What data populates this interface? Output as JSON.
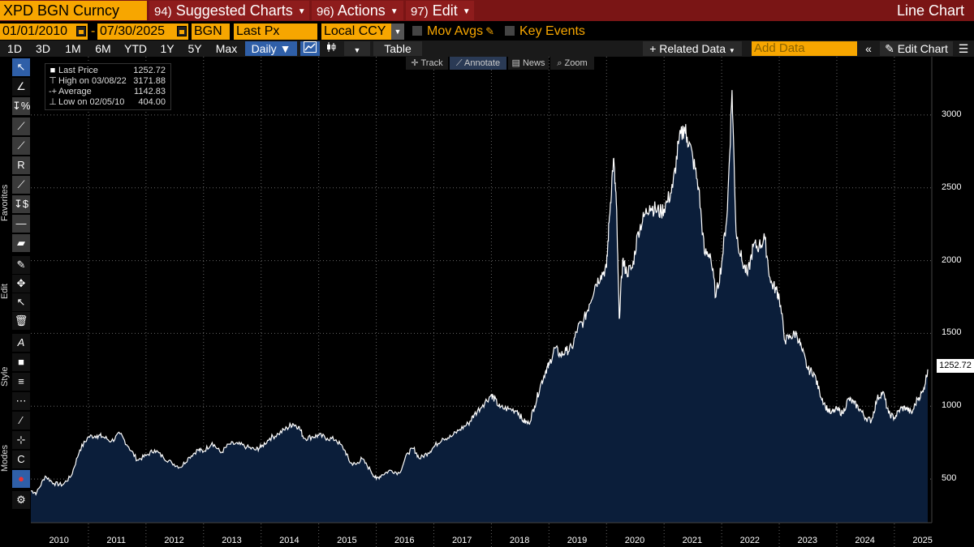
{
  "header": {
    "ticker": "XPD BGN Curncy",
    "menus": [
      {
        "num": "94)",
        "label": "Suggested Charts"
      },
      {
        "num": "96)",
        "label": "Actions"
      },
      {
        "num": "97)",
        "label": "Edit"
      }
    ],
    "chart_type": "Line Chart"
  },
  "params": {
    "start_date": "01/01/2010",
    "end_date": "07/30/2025",
    "source": "BGN",
    "field": "Last Px",
    "currency": "Local CCY",
    "mov_avgs": "Mov Avgs",
    "key_events": "Key Events"
  },
  "toolbar": {
    "ranges": [
      "1D",
      "3D",
      "1M",
      "6M",
      "YTD",
      "1Y",
      "5Y",
      "Max"
    ],
    "frequency": "Daily",
    "table": "Table",
    "related_data": "Related Data",
    "add_data_placeholder": "Add Data",
    "edit_chart": "Edit Chart"
  },
  "chart_tabs": [
    "Track",
    "Annotate",
    "News",
    "Zoom"
  ],
  "sidebar_labels": {
    "favorites": "Favorites",
    "edit": "Edit",
    "style": "Style",
    "modes": "Modes"
  },
  "legend": {
    "last_price_label": "Last Price",
    "last_price": "1252.72",
    "high_label": "High on 03/08/22",
    "high": "3171.88",
    "avg_label": "Average",
    "avg": "1142.83",
    "low_label": "Low on 02/05/10",
    "low": "404.00"
  },
  "last_value_box": "1252.72",
  "colors": {
    "orange": "#f7a600",
    "maroon": "#7a1515",
    "fill": "#0b1e3a",
    "line": "#ffffff",
    "select": "#2f5fa8"
  },
  "chart_data": {
    "type": "area",
    "title": "XPD BGN Curncy",
    "series_name": "Last Price",
    "x_ticks": [
      "2010",
      "2011",
      "2012",
      "2013",
      "2014",
      "2015",
      "2016",
      "2017",
      "2018",
      "2019",
      "2020",
      "2021",
      "2022",
      "2023",
      "2024",
      "2025"
    ],
    "y_ticks": [
      500,
      1000,
      1500,
      2000,
      2500,
      3000
    ],
    "ylim": [
      200,
      3400
    ],
    "xlim": [
      2010.0,
      2025.65
    ],
    "points": [
      [
        2010.0,
        420
      ],
      [
        2010.1,
        404
      ],
      [
        2010.25,
        520
      ],
      [
        2010.4,
        470
      ],
      [
        2010.55,
        460
      ],
      [
        2010.7,
        520
      ],
      [
        2010.85,
        700
      ],
      [
        2011.0,
        790
      ],
      [
        2011.15,
        800
      ],
      [
        2011.25,
        790
      ],
      [
        2011.4,
        760
      ],
      [
        2011.55,
        810
      ],
      [
        2011.7,
        720
      ],
      [
        2011.85,
        630
      ],
      [
        2012.0,
        660
      ],
      [
        2012.15,
        700
      ],
      [
        2012.3,
        650
      ],
      [
        2012.45,
        610
      ],
      [
        2012.6,
        580
      ],
      [
        2012.75,
        650
      ],
      [
        2012.9,
        700
      ],
      [
        2013.0,
        690
      ],
      [
        2013.15,
        750
      ],
      [
        2013.3,
        680
      ],
      [
        2013.45,
        740
      ],
      [
        2013.6,
        740
      ],
      [
        2013.75,
        720
      ],
      [
        2013.9,
        700
      ],
      [
        2014.0,
        720
      ],
      [
        2014.15,
        780
      ],
      [
        2014.3,
        810
      ],
      [
        2014.45,
        850
      ],
      [
        2014.55,
        880
      ],
      [
        2014.65,
        860
      ],
      [
        2014.75,
        780
      ],
      [
        2014.9,
        790
      ],
      [
        2015.0,
        800
      ],
      [
        2015.15,
        780
      ],
      [
        2015.3,
        770
      ],
      [
        2015.45,
        700
      ],
      [
        2015.55,
        610
      ],
      [
        2015.65,
        600
      ],
      [
        2015.75,
        640
      ],
      [
        2015.9,
        560
      ],
      [
        2016.0,
        500
      ],
      [
        2016.1,
        530
      ],
      [
        2016.25,
        560
      ],
      [
        2016.4,
        540
      ],
      [
        2016.55,
        680
      ],
      [
        2016.65,
        710
      ],
      [
        2016.75,
        640
      ],
      [
        2016.9,
        680
      ],
      [
        2017.0,
        720
      ],
      [
        2017.15,
        780
      ],
      [
        2017.3,
        790
      ],
      [
        2017.45,
        840
      ],
      [
        2017.6,
        880
      ],
      [
        2017.7,
        940
      ],
      [
        2017.85,
        1010
      ],
      [
        2018.0,
        1080
      ],
      [
        2018.05,
        1050
      ],
      [
        2018.15,
        990
      ],
      [
        2018.3,
        980
      ],
      [
        2018.45,
        970
      ],
      [
        2018.55,
        900
      ],
      [
        2018.65,
        880
      ],
      [
        2018.75,
        1000
      ],
      [
        2018.85,
        1140
      ],
      [
        2018.95,
        1250
      ],
      [
        2019.0,
        1280
      ],
      [
        2019.1,
        1400
      ],
      [
        2019.2,
        1350
      ],
      [
        2019.3,
        1380
      ],
      [
        2019.4,
        1400
      ],
      [
        2019.5,
        1540
      ],
      [
        2019.6,
        1580
      ],
      [
        2019.7,
        1700
      ],
      [
        2019.8,
        1830
      ],
      [
        2019.9,
        1900
      ],
      [
        2020.0,
        1950
      ],
      [
        2020.05,
        2300
      ],
      [
        2020.12,
        2700
      ],
      [
        2020.17,
        2400
      ],
      [
        2020.22,
        1600
      ],
      [
        2020.28,
        2000
      ],
      [
        2020.35,
        1920
      ],
      [
        2020.45,
        1950
      ],
      [
        2020.55,
        2200
      ],
      [
        2020.65,
        2300
      ],
      [
        2020.75,
        2380
      ],
      [
        2020.85,
        2350
      ],
      [
        2020.95,
        2330
      ],
      [
        2021.05,
        2400
      ],
      [
        2021.15,
        2500
      ],
      [
        2021.25,
        2800
      ],
      [
        2021.35,
        2920
      ],
      [
        2021.4,
        2850
      ],
      [
        2021.5,
        2700
      ],
      [
        2021.6,
        2500
      ],
      [
        2021.7,
        2050
      ],
      [
        2021.8,
        2050
      ],
      [
        2021.9,
        1750
      ],
      [
        2022.0,
        1980
      ],
      [
        2022.1,
        2350
      ],
      [
        2022.18,
        3171
      ],
      [
        2022.25,
        2200
      ],
      [
        2022.35,
        2000
      ],
      [
        2022.45,
        1900
      ],
      [
        2022.55,
        2100
      ],
      [
        2022.65,
        2100
      ],
      [
        2022.75,
        2150
      ],
      [
        2022.85,
        1850
      ],
      [
        2022.95,
        1800
      ],
      [
        2023.0,
        1750
      ],
      [
        2023.1,
        1450
      ],
      [
        2023.2,
        1480
      ],
      [
        2023.3,
        1500
      ],
      [
        2023.4,
        1380
      ],
      [
        2023.5,
        1250
      ],
      [
        2023.6,
        1230
      ],
      [
        2023.7,
        1100
      ],
      [
        2023.8,
        1000
      ],
      [
        2023.9,
        950
      ],
      [
        2024.0,
        980
      ],
      [
        2024.1,
        950
      ],
      [
        2024.2,
        1050
      ],
      [
        2024.3,
        1020
      ],
      [
        2024.4,
        980
      ],
      [
        2024.5,
        920
      ],
      [
        2024.6,
        900
      ],
      [
        2024.7,
        1050
      ],
      [
        2024.8,
        1100
      ],
      [
        2024.9,
        950
      ],
      [
        2025.0,
        920
      ],
      [
        2025.1,
        980
      ],
      [
        2025.2,
        990
      ],
      [
        2025.3,
        950
      ],
      [
        2025.4,
        1050
      ],
      [
        2025.5,
        1100
      ],
      [
        2025.58,
        1252.72
      ]
    ]
  }
}
